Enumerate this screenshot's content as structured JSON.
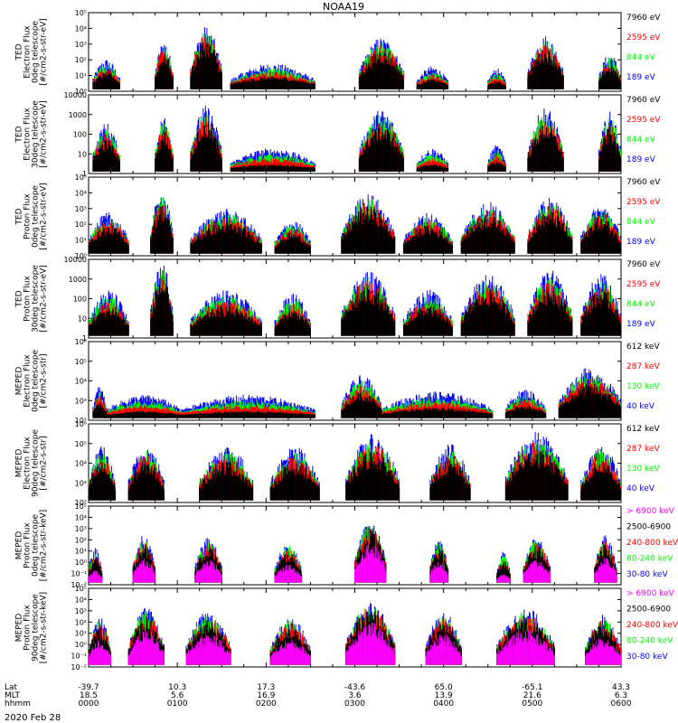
{
  "title": "NOAA19",
  "date_label": "2020 Feb 28",
  "xaxis_rows": [
    {
      "label": "Lat",
      "values": [
        "-39.7",
        "10.3",
        "17.3",
        "-43.6",
        "65.0",
        "-65.1",
        "43.3"
      ]
    },
    {
      "label": "MLT",
      "values": [
        "18.5",
        "5.6",
        "16.9",
        "3.6",
        "13.9",
        "21.6",
        "6.3"
      ]
    },
    {
      "label": "hhmm",
      "values": [
        "0000",
        "0100",
        "0200",
        "0300",
        "0400",
        "0500",
        "0600"
      ]
    }
  ],
  "colors": {
    "black": "#000000",
    "red": "#ff0000",
    "green": "#00ff00",
    "blue": "#0000ff",
    "magenta": "#ff00ff"
  },
  "chart_data": [
    {
      "type": "line",
      "panel": "TED Electron Flux 0deg",
      "ylabel_lines": [
        "TED",
        "Electron Flux",
        "0deg telescope",
        "[#/cm2-s-str-eV]"
      ],
      "yscale": "log",
      "ylim": [
        1,
        100000
      ],
      "yticks": [
        "10⁰",
        "10¹",
        "10²",
        "10³",
        "10⁴",
        "10⁵"
      ],
      "x_unit": "hours UT",
      "xlim": [
        0,
        6
      ],
      "series": [
        {
          "name": "7960 eV",
          "color": "black"
        },
        {
          "name": "2595 eV",
          "color": "red"
        },
        {
          "name": "844 eV",
          "color": "green"
        },
        {
          "name": "189 eV",
          "color": "blue"
        }
      ],
      "activity": [
        {
          "x0": 0.05,
          "x1": 0.35,
          "peak": 120
        },
        {
          "x0": 0.75,
          "x1": 0.95,
          "peak": 2000
        },
        {
          "x0": 1.15,
          "x1": 1.5,
          "peak": 15000
        },
        {
          "x0": 1.6,
          "x1": 2.55,
          "peak": 60
        },
        {
          "x0": 3.05,
          "x1": 3.55,
          "peak": 3000
        },
        {
          "x0": 3.7,
          "x1": 4.05,
          "peak": 40
        },
        {
          "x0": 4.5,
          "x1": 4.7,
          "peak": 30
        },
        {
          "x0": 4.95,
          "x1": 5.35,
          "peak": 4000
        },
        {
          "x0": 5.75,
          "x1": 6.0,
          "peak": 300
        }
      ]
    },
    {
      "type": "line",
      "panel": "TED Electron Flux 30deg",
      "ylabel_lines": [
        "TED",
        "Electron Flux",
        "30deg telescope",
        "[#/cm2-s-str-eV]"
      ],
      "yscale": "log",
      "ylim": [
        1,
        10000
      ],
      "yticks": [
        "1",
        "10",
        "100",
        "1000",
        "10000"
      ],
      "x_unit": "hours UT",
      "xlim": [
        0,
        6
      ],
      "series": [
        {
          "name": "7960 eV",
          "color": "black"
        },
        {
          "name": "2595 eV",
          "color": "red"
        },
        {
          "name": "844 eV",
          "color": "green"
        },
        {
          "name": "189 eV",
          "color": "blue"
        }
      ],
      "activity": [
        {
          "x0": 0.05,
          "x1": 0.35,
          "peak": 400
        },
        {
          "x0": 0.75,
          "x1": 0.95,
          "peak": 1000
        },
        {
          "x0": 1.15,
          "x1": 1.5,
          "peak": 3000
        },
        {
          "x0": 1.6,
          "x1": 2.55,
          "peak": 20
        },
        {
          "x0": 3.05,
          "x1": 3.55,
          "peak": 2000
        },
        {
          "x0": 3.7,
          "x1": 4.05,
          "peak": 20
        },
        {
          "x0": 4.5,
          "x1": 4.7,
          "peak": 30
        },
        {
          "x0": 4.95,
          "x1": 5.35,
          "peak": 2500
        },
        {
          "x0": 5.75,
          "x1": 6.0,
          "peak": 1500
        }
      ]
    },
    {
      "type": "line",
      "panel": "TED Proton Flux 0deg",
      "ylabel_lines": [
        "TED",
        "Proton Flux",
        "0deg telescope",
        "[#/cm2-s-str-eV]"
      ],
      "yscale": "log",
      "ylim": [
        1,
        100000
      ],
      "yticks": [
        "10⁰",
        "10¹",
        "10²",
        "10³",
        "10⁴",
        "10⁵"
      ],
      "x_unit": "hours UT",
      "xlim": [
        0,
        6
      ],
      "series": [
        {
          "name": "7960 eV",
          "color": "black"
        },
        {
          "name": "2595 eV",
          "color": "red"
        },
        {
          "name": "844 eV",
          "color": "green"
        },
        {
          "name": "189 eV",
          "color": "blue"
        }
      ],
      "activity": [
        {
          "x0": 0.0,
          "x1": 0.45,
          "peak": 600
        },
        {
          "x0": 0.7,
          "x1": 0.95,
          "peak": 15000
        },
        {
          "x0": 1.15,
          "x1": 1.95,
          "peak": 1000
        },
        {
          "x0": 2.1,
          "x1": 2.5,
          "peak": 200
        },
        {
          "x0": 2.85,
          "x1": 3.45,
          "peak": 10000
        },
        {
          "x0": 3.55,
          "x1": 4.1,
          "peak": 600
        },
        {
          "x0": 4.2,
          "x1": 4.8,
          "peak": 3000
        },
        {
          "x0": 4.95,
          "x1": 5.45,
          "peak": 5000
        },
        {
          "x0": 5.55,
          "x1": 6.0,
          "peak": 2000
        }
      ]
    },
    {
      "type": "line",
      "panel": "TED Proton Flux 30deg",
      "ylabel_lines": [
        "TED",
        "Proton Flux",
        "30deg telescope",
        "[#/cm2-s-str-eV]"
      ],
      "yscale": "log",
      "ylim": [
        1,
        10000
      ],
      "yticks": [
        "1",
        "10",
        "100",
        "1000",
        "10000"
      ],
      "x_unit": "hours UT",
      "xlim": [
        0,
        6
      ],
      "series": [
        {
          "name": "7960 eV",
          "color": "black"
        },
        {
          "name": "2595 eV",
          "color": "red"
        },
        {
          "name": "844 eV",
          "color": "green"
        },
        {
          "name": "189 eV",
          "color": "blue"
        }
      ],
      "activity": [
        {
          "x0": 0.0,
          "x1": 0.45,
          "peak": 300
        },
        {
          "x0": 0.7,
          "x1": 0.95,
          "peak": 8000
        },
        {
          "x0": 1.15,
          "x1": 1.95,
          "peak": 300
        },
        {
          "x0": 2.1,
          "x1": 2.5,
          "peak": 200
        },
        {
          "x0": 2.85,
          "x1": 3.45,
          "peak": 3000
        },
        {
          "x0": 3.55,
          "x1": 4.1,
          "peak": 300
        },
        {
          "x0": 4.2,
          "x1": 4.8,
          "peak": 2000
        },
        {
          "x0": 4.95,
          "x1": 5.45,
          "peak": 3000
        },
        {
          "x0": 5.55,
          "x1": 6.0,
          "peak": 2000
        }
      ]
    },
    {
      "type": "line",
      "panel": "MEPED Electron Flux 0deg",
      "ylabel_lines": [
        "MEPED",
        "Electron Flux",
        "0deg telescope",
        "[#/cm2-s-str]"
      ],
      "yscale": "log",
      "ylim": [
        100,
        1000000
      ],
      "yticks": [
        "10²",
        "10³",
        "10⁴",
        "10⁵",
        "10⁶"
      ],
      "x_unit": "hours UT",
      "xlim": [
        0,
        6
      ],
      "series": [
        {
          "name": "612 keV",
          "color": "black"
        },
        {
          "name": "287 keV",
          "color": "red"
        },
        {
          "name": "130 keV",
          "color": "green"
        },
        {
          "name": "40 keV",
          "color": "blue"
        }
      ],
      "activity": [
        {
          "x0": 0.05,
          "x1": 0.2,
          "peak": 6000
        },
        {
          "x0": 0.2,
          "x1": 1.05,
          "peak": 2000
        },
        {
          "x0": 1.05,
          "x1": 2.55,
          "peak": 2000
        },
        {
          "x0": 2.85,
          "x1": 3.3,
          "peak": 20000
        },
        {
          "x0": 3.3,
          "x1": 4.55,
          "peak": 3000
        },
        {
          "x0": 4.7,
          "x1": 5.15,
          "peak": 4000
        },
        {
          "x0": 5.3,
          "x1": 6.0,
          "peak": 50000
        }
      ]
    },
    {
      "type": "line",
      "panel": "MEPED Electron Flux 90deg",
      "ylabel_lines": [
        "MEPED",
        "Electron Flux",
        "90deg telescope",
        "[#/cm2-s-str]"
      ],
      "yscale": "log",
      "ylim": [
        100,
        1000000
      ],
      "yticks": [
        "10²",
        "10³",
        "10⁴",
        "10⁵",
        "10⁶"
      ],
      "x_unit": "hours UT",
      "xlim": [
        0,
        6
      ],
      "series": [
        {
          "name": "612 keV",
          "color": "black"
        },
        {
          "name": "287 keV",
          "color": "red"
        },
        {
          "name": "130 keV",
          "color": "green"
        },
        {
          "name": "40 keV",
          "color": "blue"
        }
      ],
      "activity": [
        {
          "x0": 0.0,
          "x1": 0.3,
          "peak": 80000
        },
        {
          "x0": 0.45,
          "x1": 0.85,
          "peak": 100000
        },
        {
          "x0": 1.25,
          "x1": 1.85,
          "peak": 100000
        },
        {
          "x0": 2.05,
          "x1": 2.6,
          "peak": 80000
        },
        {
          "x0": 2.9,
          "x1": 3.5,
          "peak": 300000
        },
        {
          "x0": 3.85,
          "x1": 4.3,
          "peak": 100000
        },
        {
          "x0": 4.7,
          "x1": 5.4,
          "peak": 400000
        },
        {
          "x0": 5.55,
          "x1": 6.0,
          "peak": 100000
        }
      ]
    },
    {
      "type": "line",
      "panel": "MEPED Proton Flux 0deg",
      "ylabel_lines": [
        "MEPED",
        "Proton Flux",
        "0deg telescope",
        "[#/cm2-s-str-keV]"
      ],
      "yscale": "log",
      "ylim": [
        0.01,
        100000
      ],
      "yticks": [
        "10⁻²",
        "10⁻¹",
        "10⁰",
        "10¹",
        "10²",
        "10³",
        "10⁴",
        "10⁵"
      ],
      "x_unit": "hours UT",
      "xlim": [
        0,
        6
      ],
      "series": [
        {
          "name": "> 6900 keV",
          "color": "magenta"
        },
        {
          "name": "2500-6900",
          "color": "black"
        },
        {
          "name": "240-800 keV",
          "color": "red"
        },
        {
          "name": "80-240 keV",
          "color": "green"
        },
        {
          "name": "30-80 keV",
          "color": "blue"
        }
      ],
      "activity": [
        {
          "x0": 0.0,
          "x1": 0.15,
          "peak": 20
        },
        {
          "x0": 0.5,
          "x1": 0.75,
          "peak": 300
        },
        {
          "x0": 1.2,
          "x1": 1.5,
          "peak": 200
        },
        {
          "x0": 2.1,
          "x1": 2.4,
          "peak": 60
        },
        {
          "x0": 3.0,
          "x1": 3.35,
          "peak": 8000
        },
        {
          "x0": 3.85,
          "x1": 4.05,
          "peak": 200
        },
        {
          "x0": 4.6,
          "x1": 4.75,
          "peak": 10
        },
        {
          "x0": 4.9,
          "x1": 5.2,
          "peak": 200
        },
        {
          "x0": 5.7,
          "x1": 5.95,
          "peak": 300
        }
      ]
    },
    {
      "type": "line",
      "panel": "MEPED Proton Flux 90deg",
      "ylabel_lines": [
        "MEPED",
        "Proton Flux",
        "90deg telescope",
        "[#/cm2-s-str-keV]"
      ],
      "yscale": "log",
      "ylim": [
        0.01,
        100000
      ],
      "yticks": [
        "10⁻²",
        "10⁻¹",
        "10⁰",
        "10¹",
        "10²",
        "10³",
        "10⁴",
        "10⁵"
      ],
      "x_unit": "hours UT",
      "xlim": [
        0,
        6
      ],
      "series": [
        {
          "name": "> 6900 keV",
          "color": "magenta"
        },
        {
          "name": "2500-6900",
          "color": "black"
        },
        {
          "name": "240-800 keV",
          "color": "red"
        },
        {
          "name": "80-240 keV",
          "color": "green"
        },
        {
          "name": "30-80 keV",
          "color": "blue"
        }
      ],
      "activity": [
        {
          "x0": 0.0,
          "x1": 0.25,
          "peak": 300
        },
        {
          "x0": 0.45,
          "x1": 0.85,
          "peak": 2000
        },
        {
          "x0": 1.1,
          "x1": 1.6,
          "peak": 1000
        },
        {
          "x0": 2.05,
          "x1": 2.5,
          "peak": 300
        },
        {
          "x0": 2.9,
          "x1": 3.45,
          "peak": 10000
        },
        {
          "x0": 3.8,
          "x1": 4.2,
          "peak": 1000
        },
        {
          "x0": 4.6,
          "x1": 5.25,
          "peak": 2000
        },
        {
          "x0": 5.6,
          "x1": 6.0,
          "peak": 500
        }
      ]
    }
  ]
}
